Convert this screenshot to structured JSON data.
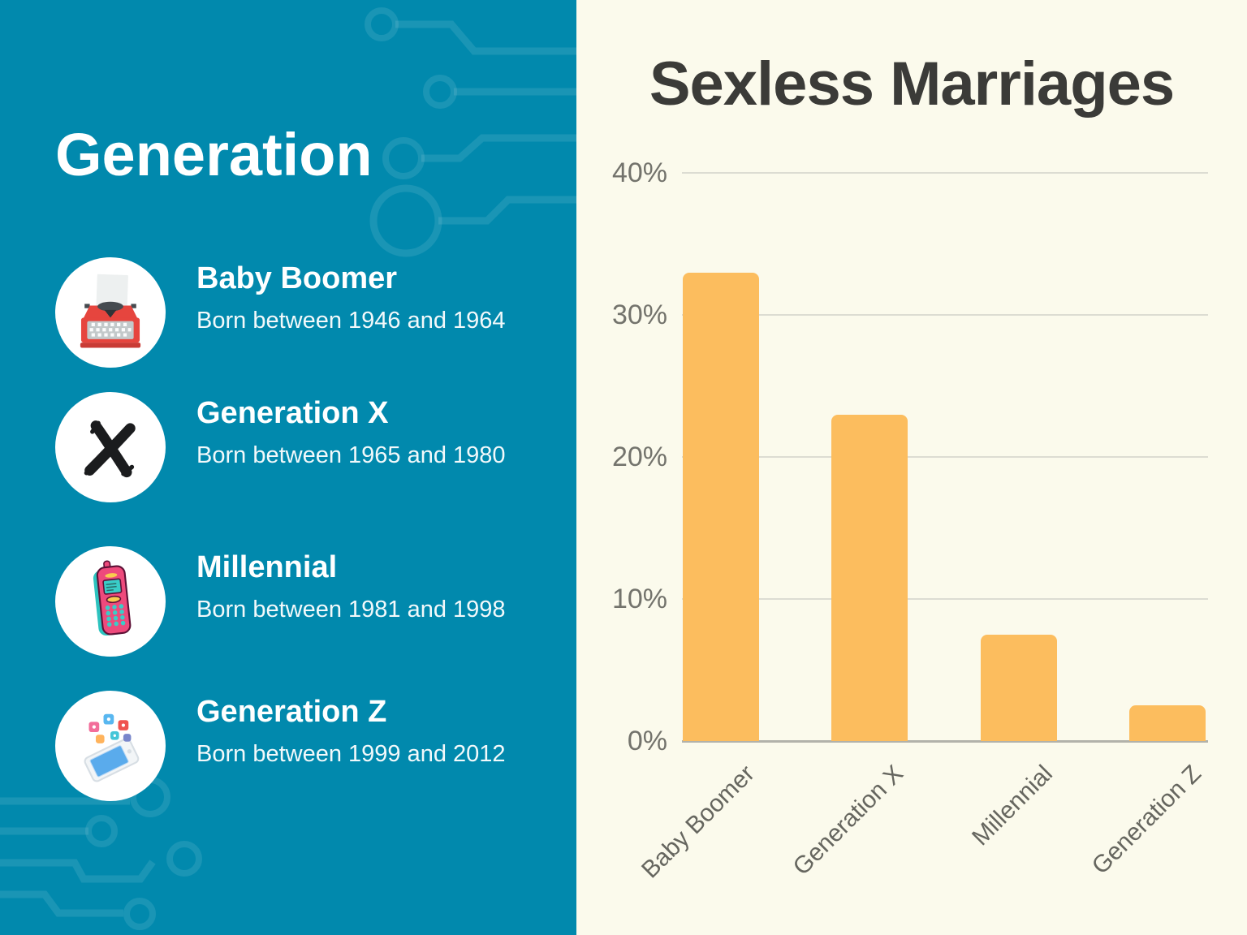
{
  "left_panel": {
    "title": "Generation",
    "background_color": "#0189ad",
    "items": [
      {
        "title": "Baby Boomer",
        "subtitle": "Born between 1946 and 1964",
        "icon": "typewriter-icon"
      },
      {
        "title": "Generation X",
        "subtitle": "Born between 1965 and 1980",
        "icon": "scribble-x-icon"
      },
      {
        "title": "Millennial",
        "subtitle": "Born between 1981 and 1998",
        "icon": "retro-phone-icon"
      },
      {
        "title": "Generation Z",
        "subtitle": "Born between 1999 and 2012",
        "icon": "smartphone-apps-icon"
      }
    ]
  },
  "chart_data": {
    "type": "bar",
    "title": "Sexless Marriages",
    "categories": [
      "Baby Boomer",
      "Generation X",
      "Millennial",
      "Generation Z"
    ],
    "values": [
      33,
      23,
      7.5,
      2.5
    ],
    "unit": "%",
    "yticks": [
      "40%",
      "30%",
      "20%",
      "10%",
      "0%"
    ],
    "ylim": [
      0,
      40
    ],
    "xlabel": "",
    "ylabel": "",
    "grid": true,
    "legend": false,
    "x_label_rotation_deg": -45,
    "bar_color": "#fcbd5e",
    "background_color": "#fbfaec",
    "title_color": "#3b3b38"
  }
}
